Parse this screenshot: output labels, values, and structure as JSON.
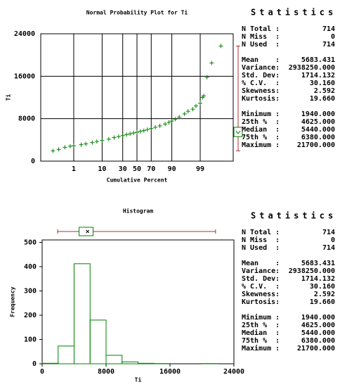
{
  "chart_data": [
    {
      "type": "probability",
      "title": "Normal Probability Plot for Ti",
      "xlabel": "Cumulative Percent",
      "ylabel": "Ti",
      "x": [
        0.1,
        0.2,
        0.4,
        0.7,
        1,
        2,
        3,
        5,
        7,
        10,
        15,
        20,
        25,
        30,
        35,
        40,
        45,
        50,
        55,
        60,
        65,
        70,
        75,
        80,
        85,
        88,
        90,
        92,
        94,
        96,
        97,
        98,
        98.5,
        99,
        99.2,
        99.3,
        99.5,
        99.7,
        99.9
      ],
      "values": [
        1940,
        2200,
        2600,
        2800,
        2900,
        3100,
        3250,
        3500,
        3700,
        3900,
        4150,
        4450,
        4625,
        4800,
        5000,
        5150,
        5300,
        5440,
        5600,
        5750,
        5950,
        6150,
        6380,
        6650,
        7000,
        7300,
        7550,
        7900,
        8300,
        8900,
        9400,
        9800,
        10400,
        10900,
        12000,
        12300,
        15800,
        18500,
        21700
      ],
      "color": "#008000",
      "xscale": "probability",
      "xlim": [
        0.02,
        99.98
      ],
      "xticks": [
        1,
        10,
        30,
        50,
        70,
        90,
        99
      ],
      "ylim": [
        0,
        24000
      ],
      "yticks": [
        0,
        8000,
        16000,
        24000
      ],
      "grid": true,
      "box": {
        "min": 1940,
        "q1": 4625,
        "median": 5440,
        "q3": 6380,
        "max": 21700,
        "mean": 5683.431
      },
      "whisker_color": "#b03030"
    },
    {
      "type": "histogram",
      "title": "Histogram",
      "xlabel": "Ti",
      "ylabel": "Frequency",
      "bins": [
        0,
        2000,
        4000,
        6000,
        8000,
        10000,
        12000,
        14000,
        16000,
        18000,
        20000,
        22000,
        24000
      ],
      "values": [
        2,
        73,
        412,
        180,
        35,
        8,
        2,
        1,
        0,
        0,
        1,
        0
      ],
      "color": "#008000",
      "xlim": [
        0,
        24000
      ],
      "xticks": [
        0,
        8000,
        16000,
        24000
      ],
      "ylim": [
        0,
        510
      ],
      "yticks": [
        0,
        100,
        200,
        300,
        400,
        500
      ],
      "grid": false,
      "box": {
        "min": 1940,
        "q1": 4625,
        "median": 5440,
        "q3": 6380,
        "max": 21700,
        "mean": 5683.431
      },
      "whisker_color": "#b03030"
    }
  ],
  "statistics": [
    {
      "title": "Statistics",
      "groups": [
        [
          [
            "N Total :",
            "714"
          ],
          [
            "N Miss  :",
            "0"
          ],
          [
            "N Used  :",
            "714"
          ]
        ],
        [
          [
            "Mean    :",
            "5683.431"
          ],
          [
            "Variance:",
            "2938250.000"
          ],
          [
            "Std. Dev:",
            "1714.132"
          ],
          [
            "% C.V.  :",
            "30.160"
          ],
          [
            "Skewness:",
            "2.592"
          ],
          [
            "Kurtosis:",
            "19.660"
          ]
        ],
        [
          [
            "Minimum :",
            "1940.000"
          ],
          [
            "25th %  :",
            "4625.000"
          ],
          [
            "Median  :",
            "5440.000"
          ],
          [
            "75th %  :",
            "6380.000"
          ],
          [
            "Maximum :",
            "21700.000"
          ]
        ]
      ]
    },
    {
      "title": "Statistics",
      "groups": [
        [
          [
            "N Total :",
            "714"
          ],
          [
            "N Miss  :",
            "0"
          ],
          [
            "N Used  :",
            "714"
          ]
        ],
        [
          [
            "Mean    :",
            "5683.431"
          ],
          [
            "Variance:",
            "2938250.000"
          ],
          [
            "Std. Dev:",
            "1714.132"
          ],
          [
            "% C.V.  :",
            "30.160"
          ],
          [
            "Skewness:",
            "2.592"
          ],
          [
            "Kurtosis:",
            "19.660"
          ]
        ],
        [
          [
            "Minimum :",
            "1940.000"
          ],
          [
            "25th %  :",
            "4625.000"
          ],
          [
            "Median  :",
            "5440.000"
          ],
          [
            "75th %  :",
            "6380.000"
          ],
          [
            "Maximum :",
            "21700.000"
          ]
        ]
      ]
    }
  ]
}
